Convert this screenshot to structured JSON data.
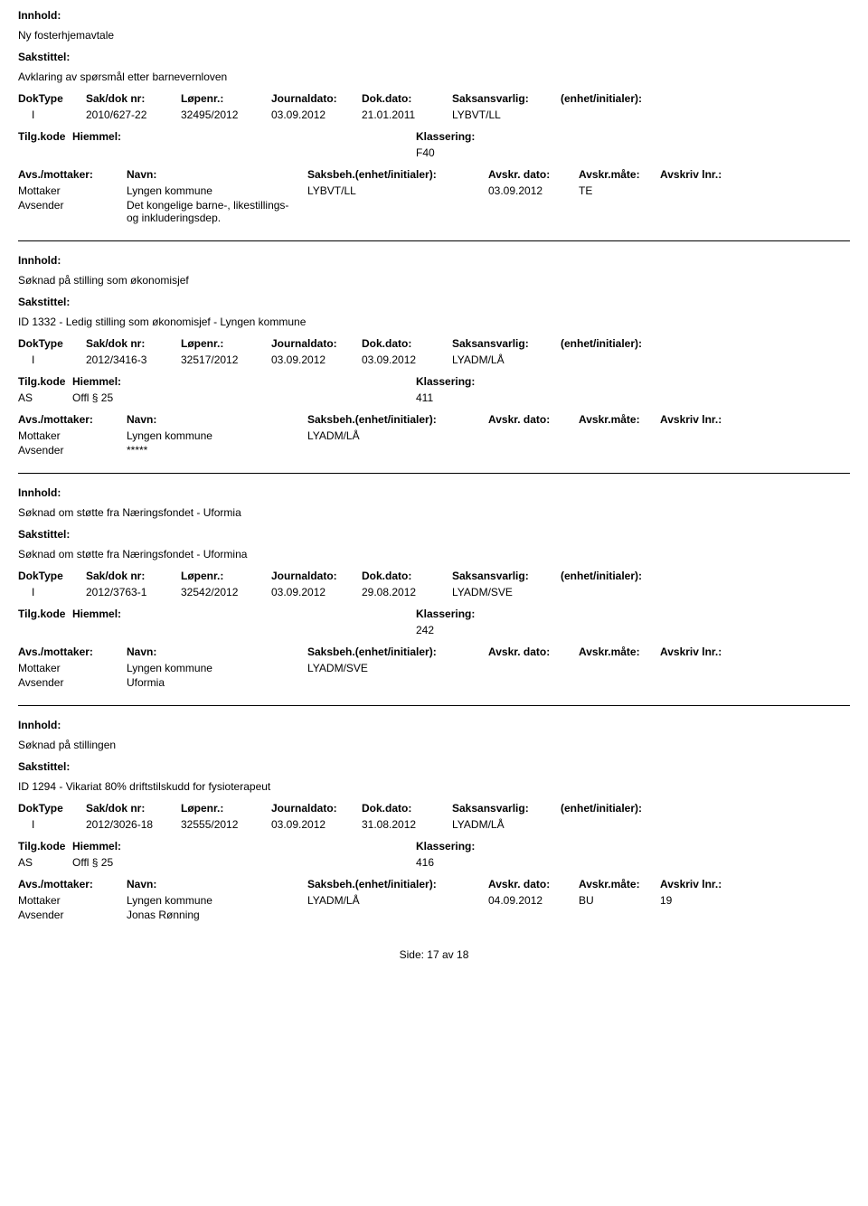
{
  "labels": {
    "innhold": "Innhold:",
    "sakstittel": "Sakstittel:",
    "doktype": "DokType",
    "sakdok": "Sak/dok nr:",
    "lopenr": "Løpenr.:",
    "journaldato": "Journaldato:",
    "dokdato": "Dok.dato:",
    "saksansvarlig": "Saksansvarlig:",
    "enhet": "(enhet/initialer):",
    "tilgkode": "Tilg.kode",
    "hiemmel": "Hiemmel:",
    "klassering": "Klassering:",
    "avsmottaker": "Avs./mottaker:",
    "navn": "Navn:",
    "saksbeh": "Saksbeh.(enhet/initialer):",
    "avskrdato": "Avskr. dato:",
    "avskrmate": "Avskr.måte:",
    "avskrivlnr": "Avskriv lnr.:",
    "mottaker": "Mottaker",
    "avsender": "Avsender"
  },
  "records": [
    {
      "innhold": "Ny fosterhjemavtale",
      "sakstittel": "Avklaring av spørsmål etter barnevernloven",
      "doktype": "I",
      "sakdok": "2010/627-22",
      "lopenr": "32495/2012",
      "journaldato": "03.09.2012",
      "dokdato": "21.01.2011",
      "saksansvarlig": "LYBVT/LL",
      "enhet": "",
      "tilgkode": "",
      "hiemmel": "",
      "klassering": "F40",
      "parties": [
        {
          "role": "Mottaker",
          "navn": "Lyngen kommune",
          "saksbeh": "LYBVT/LL",
          "avskrdato": "03.09.2012",
          "avskrmate": "TE",
          "avskrivlnr": ""
        },
        {
          "role": "Avsender",
          "navn": "Det kongelige barne-, likestillings- og inkluderingsdep.",
          "saksbeh": "",
          "avskrdato": "",
          "avskrmate": "",
          "avskrivlnr": ""
        }
      ]
    },
    {
      "innhold": "Søknad på stilling som økonomisjef",
      "sakstittel": "ID 1332 - Ledig stilling som økonomisjef - Lyngen kommune",
      "doktype": "I",
      "sakdok": "2012/3416-3",
      "lopenr": "32517/2012",
      "journaldato": "03.09.2012",
      "dokdato": "03.09.2012",
      "saksansvarlig": "LYADM/LÅ",
      "enhet": "",
      "tilgkode": "AS",
      "hiemmel": "Offl § 25",
      "klassering": "411",
      "parties": [
        {
          "role": "Mottaker",
          "navn": "Lyngen kommune",
          "saksbeh": "LYADM/LÅ",
          "avskrdato": "",
          "avskrmate": "",
          "avskrivlnr": ""
        },
        {
          "role": "Avsender",
          "navn": "*****",
          "saksbeh": "",
          "avskrdato": "",
          "avskrmate": "",
          "avskrivlnr": ""
        }
      ]
    },
    {
      "innhold": "Søknad om støtte fra Næringsfondet - Uformia",
      "sakstittel": "Søknad om støtte fra Næringsfondet - Uformina",
      "doktype": "I",
      "sakdok": "2012/3763-1",
      "lopenr": "32542/2012",
      "journaldato": "03.09.2012",
      "dokdato": "29.08.2012",
      "saksansvarlig": "LYADM/SVE",
      "enhet": "",
      "tilgkode": "",
      "hiemmel": "",
      "klassering": "242",
      "parties": [
        {
          "role": "Mottaker",
          "navn": "Lyngen kommune",
          "saksbeh": "LYADM/SVE",
          "avskrdato": "",
          "avskrmate": "",
          "avskrivlnr": ""
        },
        {
          "role": "Avsender",
          "navn": "Uformia",
          "saksbeh": "",
          "avskrdato": "",
          "avskrmate": "",
          "avskrivlnr": ""
        }
      ]
    },
    {
      "innhold": "Søknad på stillingen",
      "sakstittel": "ID 1294 - Vikariat 80% driftstilskudd for fysioterapeut",
      "doktype": "I",
      "sakdok": "2012/3026-18",
      "lopenr": "32555/2012",
      "journaldato": "03.09.2012",
      "dokdato": "31.08.2012",
      "saksansvarlig": "LYADM/LÅ",
      "enhet": "",
      "tilgkode": "AS",
      "hiemmel": "Offl § 25",
      "klassering": "416",
      "parties": [
        {
          "role": "Mottaker",
          "navn": "Lyngen kommune",
          "saksbeh": "LYADM/LÅ",
          "avskrdato": "04.09.2012",
          "avskrmate": "BU",
          "avskrivlnr": "19"
        },
        {
          "role": "Avsender",
          "navn": "Jonas Rønning",
          "saksbeh": "",
          "avskrdato": "",
          "avskrmate": "",
          "avskrivlnr": ""
        }
      ]
    }
  ],
  "footer": {
    "prefix": "Side:",
    "current": "17",
    "of": "av",
    "total": "18"
  }
}
